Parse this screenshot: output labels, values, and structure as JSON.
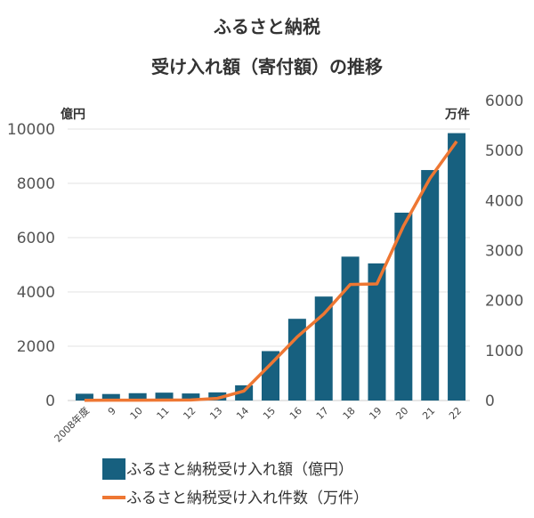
{
  "chart_data": {
    "type": "bar+line",
    "title": [
      "ふるさと納税",
      "受け入れ額（寄付額）の推移"
    ],
    "categories": [
      "2008年度",
      "9",
      "10",
      "11",
      "12",
      "13",
      "14",
      "15",
      "16",
      "17",
      "18",
      "19",
      "20",
      "21",
      "22"
    ],
    "series": [
      {
        "name": "ふるさと納税受け入れ額（億円）",
        "type": "bar",
        "axis": "left",
        "color": "#17607f",
        "values": [
          250,
          240,
          270,
          290,
          260,
          300,
          560,
          1820,
          3010,
          3830,
          5300,
          5050,
          6920,
          8490,
          9850
        ]
      },
      {
        "name": "ふるさと納税受け入れ件数（万件）",
        "type": "line",
        "axis": "right",
        "color": "#ee7733",
        "values": [
          5,
          6,
          7,
          10,
          12,
          43,
          191,
          726,
          1271,
          1730,
          2322,
          2333,
          3489,
          4447,
          5184
        ]
      }
    ],
    "left_axis": {
      "unit": "億円",
      "ylim": [
        0,
        10000
      ],
      "ticks": [
        "0",
        "2000",
        "4000",
        "6000",
        "8000",
        "10000"
      ]
    },
    "right_axis": {
      "unit": "万件",
      "ylim": [
        0,
        6000
      ],
      "ticks": [
        "0",
        "1000",
        "2000",
        "3000",
        "4000",
        "5000",
        "6000"
      ]
    },
    "grid": true,
    "legend": "bottom"
  }
}
